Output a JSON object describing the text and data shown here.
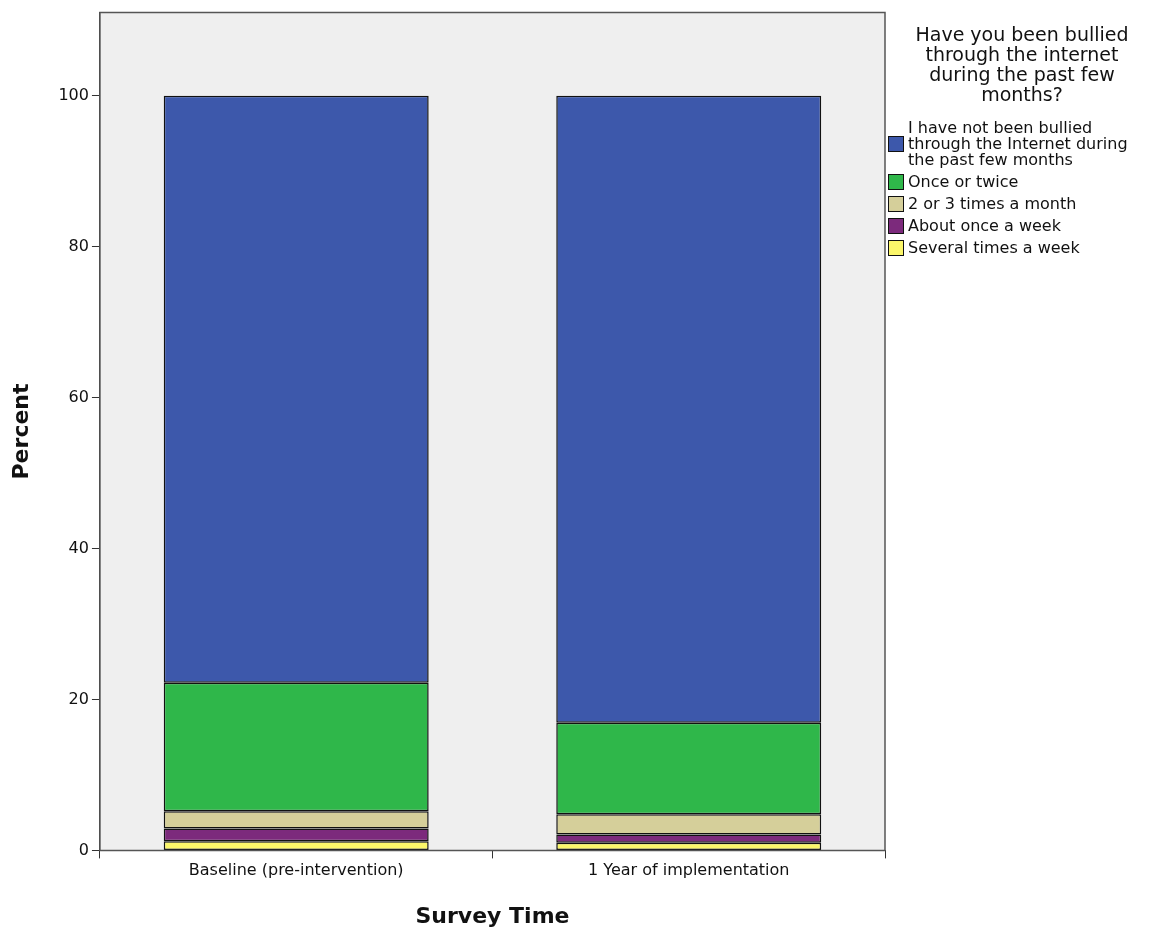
{
  "chart_data": {
    "type": "bar",
    "stacked": true,
    "xlabel": "Survey Time",
    "ylabel": "Percent",
    "legend_title": "Have you been bullied through the internet during the past few months?",
    "legend": "right",
    "grid": false,
    "categories": [
      "Baseline (pre-intervention)",
      "1 Year of implementation"
    ],
    "ylim": [
      0,
      111
    ],
    "yticks": [
      0,
      20,
      40,
      60,
      80,
      100
    ],
    "series": [
      {
        "name": "Several times a week",
        "color": "#fbf66a",
        "values": [
          1.2,
          1.0
        ]
      },
      {
        "name": "About once a week",
        "color": "#7c2a7c",
        "values": [
          1.7,
          1.1
        ]
      },
      {
        "name": "2 or 3 times a month",
        "color": "#d5cf9a",
        "values": [
          2.3,
          2.7
        ]
      },
      {
        "name": "Once or twice",
        "color": "#2fb74a",
        "values": [
          17.0,
          12.1
        ]
      },
      {
        "name": "I have not been bullied through the Internet during the past few months",
        "color": "#3d58ab",
        "values": [
          77.8,
          83.1
        ]
      }
    ]
  }
}
